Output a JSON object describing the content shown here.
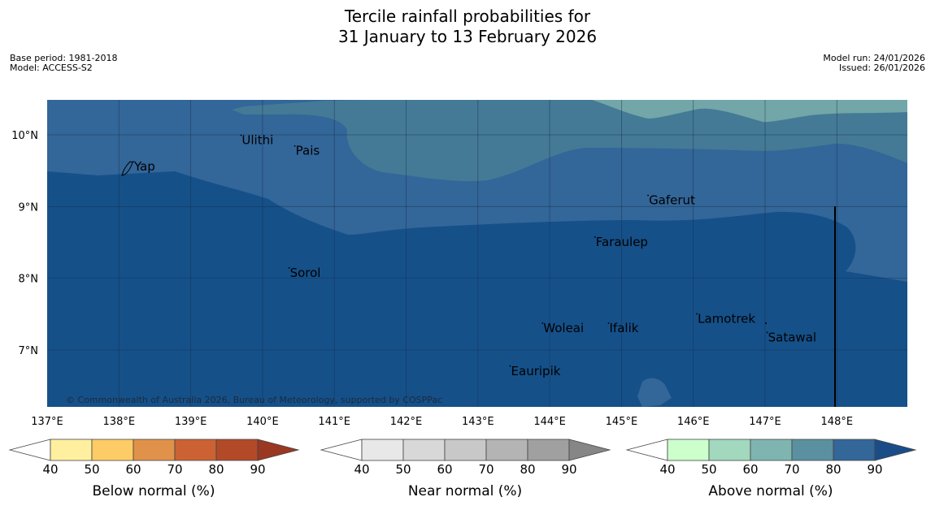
{
  "title": {
    "line1": "Tercile rainfall probabilities for",
    "line2": "31 January to 13 February 2026"
  },
  "meta_left": {
    "base_period": "Base period: 1981-2018",
    "model": "Model: ACCESS-S2"
  },
  "meta_right": {
    "model_run": "Model run: 24/01/2026",
    "issued": "Issued: 26/01/2026"
  },
  "map": {
    "lon_range": [
      137,
      149
    ],
    "lat_range": [
      6.2,
      10.5
    ],
    "lon_ticks": [
      "137°E",
      "138°E",
      "139°E",
      "140°E",
      "141°E",
      "142°E",
      "143°E",
      "144°E",
      "145°E",
      "146°E",
      "147°E",
      "148°E"
    ],
    "lat_ticks": [
      "10°N",
      "9°N",
      "8°N",
      "7°N"
    ],
    "places": [
      {
        "name": "Yap",
        "lon": 138.2,
        "lat": 9.5
      },
      {
        "name": "Ulithi",
        "lon": 139.7,
        "lat": 9.87
      },
      {
        "name": "Pais",
        "lon": 140.45,
        "lat": 9.72
      },
      {
        "name": "Gaferut",
        "lon": 145.37,
        "lat": 9.03
      },
      {
        "name": "Faraulep",
        "lon": 144.63,
        "lat": 8.45
      },
      {
        "name": "Sorol",
        "lon": 140.37,
        "lat": 8.02
      },
      {
        "name": "Woleai",
        "lon": 143.9,
        "lat": 7.25
      },
      {
        "name": "Ifalik",
        "lon": 144.82,
        "lat": 7.25
      },
      {
        "name": "Lamotrek",
        "lon": 146.05,
        "lat": 7.38
      },
      {
        "name": "Satawal",
        "lon": 147.03,
        "lat": 7.12
      },
      {
        "name": "Eauripik",
        "lon": 143.45,
        "lat": 6.65
      }
    ],
    "copyright": "© Commonwealth of Australia 2026, Bureau of Meteorology, supported by COSPPac",
    "colors": {
      "above_90": "#155089",
      "above_80": "#336699",
      "above_70": "#447a96",
      "above_60": "#72a6a8",
      "grid": "#1a2d48"
    }
  },
  "legends": [
    {
      "label": "Below normal (%)",
      "ticks": [
        "40",
        "50",
        "60",
        "70",
        "80",
        "90"
      ],
      "colors": [
        "#fff0a0",
        "#fdcc66",
        "#e0924a",
        "#cc6233",
        "#b24a28",
        "#9a3822"
      ]
    },
    {
      "label": "Near normal (%)",
      "ticks": [
        "40",
        "50",
        "60",
        "70",
        "80",
        "90"
      ],
      "colors": [
        "#e8e8e8",
        "#d8d8d8",
        "#c8c8c8",
        "#b4b4b4",
        "#a0a0a0",
        "#868686"
      ]
    },
    {
      "label": "Above normal (%)",
      "ticks": [
        "40",
        "50",
        "60",
        "70",
        "80",
        "90"
      ],
      "colors": [
        "#ccffcc",
        "#a2d8bd",
        "#7fb5b0",
        "#5a90a0",
        "#336699",
        "#1a4d87"
      ]
    }
  ]
}
